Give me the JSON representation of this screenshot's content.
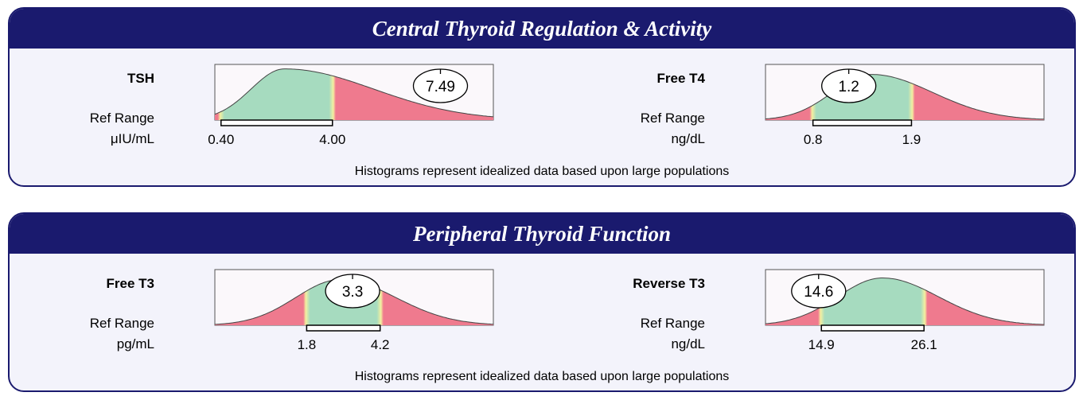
{
  "panels": [
    {
      "title": "Central Thyroid Regulation & Activity",
      "footer": "Histograms represent idealized data based upon large populations"
    },
    {
      "title": "Peripheral Thyroid Function",
      "footer": "Histograms represent idealized data based upon large populations"
    }
  ],
  "colors": {
    "banner": "#1a1a6e",
    "in_range": "#a6dbbf",
    "out_of_range": "#ef7a8e",
    "transition": "#f4f0a0"
  },
  "chart_data": [
    {
      "type": "histogram-gauge",
      "name": "TSH",
      "ref_label": "Ref Range",
      "unit": "μIU/mL",
      "ref_low": 0.4,
      "ref_high": 4.0,
      "ref_low_label": "0.40",
      "ref_high_label": "4.00",
      "value": 7.49,
      "value_label": "7.49",
      "xlim": [
        0.2,
        9.2
      ]
    },
    {
      "type": "histogram-gauge",
      "name": "Free T4",
      "ref_label": "Ref Range",
      "unit": "ng/dL",
      "ref_low": 0.8,
      "ref_high": 1.9,
      "ref_low_label": "0.8",
      "ref_high_label": "1.9",
      "value": 1.2,
      "value_label": "1.2",
      "xlim": [
        0.27,
        3.38
      ]
    },
    {
      "type": "histogram-gauge",
      "name": "Free T3",
      "ref_label": "Ref Range",
      "unit": "pg/mL",
      "ref_low": 1.8,
      "ref_high": 4.2,
      "ref_low_label": "1.8",
      "ref_high_label": "4.2",
      "value": 3.3,
      "value_label": "3.3",
      "xlim": [
        -1.2,
        7.9
      ]
    },
    {
      "type": "histogram-gauge",
      "name": "Reverse T3",
      "ref_label": "Ref Range",
      "unit": "ng/dL",
      "ref_low": 14.9,
      "ref_high": 26.1,
      "ref_low_label": "14.9",
      "ref_high_label": "26.1",
      "value": 14.6,
      "value_label": "14.6",
      "xlim": [
        8.8,
        39.2
      ]
    }
  ]
}
